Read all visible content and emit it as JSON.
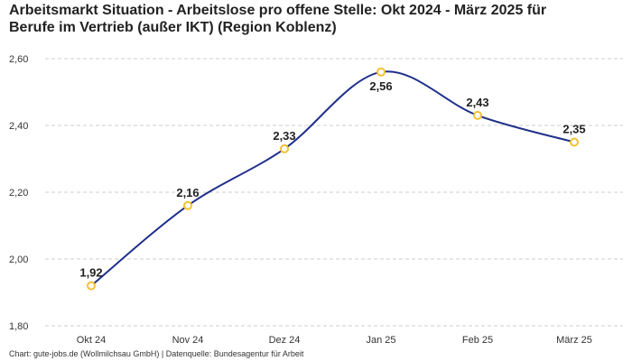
{
  "title": {
    "line1": "Arbeitsmarkt Situation - Arbeitslose pro offene Stelle: Okt 2024 - März 2025 für",
    "line2": "Berufe im Vertrieb (außer IKT) (Region Koblenz)"
  },
  "footer": "Chart: gute-jobs.de (Wollmilchsau GmbH) | Datenquelle: Bundesagentur für Arbeit",
  "colors": {
    "line": "#1f2f8a",
    "marker_stroke": "#f2c230",
    "marker_fill": "#ffffff",
    "grid": "#cccccc"
  },
  "chart_data": {
    "type": "line",
    "title": "Arbeitsmarkt Situation - Arbeitslose pro offene Stelle: Okt 2024 - März 2025 für Berufe im Vertrieb (außer IKT) (Region Koblenz)",
    "xlabel": "",
    "ylabel": "",
    "categories": [
      "Okt 24",
      "Nov 24",
      "Dez 24",
      "Jan 25",
      "Feb 25",
      "März 25"
    ],
    "series": [
      {
        "name": "Arbeitslose pro offene Stelle",
        "values": [
          1.92,
          2.16,
          2.33,
          2.56,
          2.43,
          2.35
        ],
        "labels": [
          "1,92",
          "2,16",
          "2,33",
          "2,56",
          "2,43",
          "2,35"
        ]
      }
    ],
    "ylim": [
      1.8,
      2.6
    ],
    "yticks": [
      1.8,
      2.0,
      2.2,
      2.4,
      2.6
    ],
    "ytick_labels": [
      "1,80",
      "2,00",
      "2,20",
      "2,40",
      "2,60"
    ],
    "grid": true,
    "legend": "none"
  }
}
